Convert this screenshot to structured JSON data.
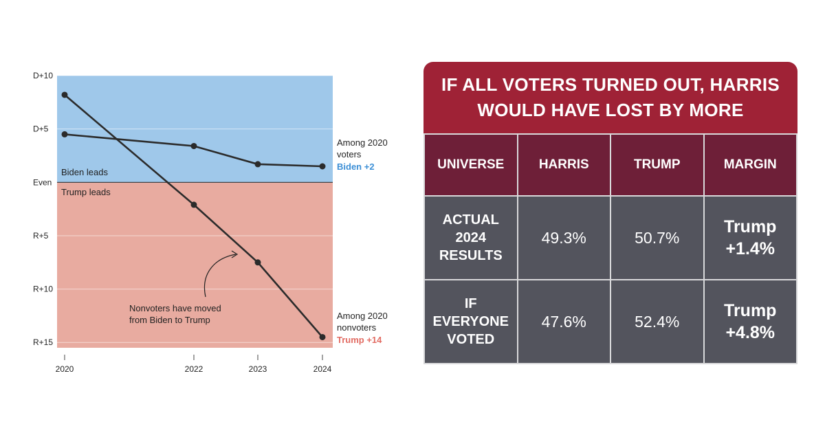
{
  "chart_data": {
    "type": "line",
    "x": [
      2020,
      2022,
      2023,
      2024
    ],
    "x_ticks": [
      "2020",
      "2022",
      "2023",
      "2024"
    ],
    "y_ticks": [
      {
        "label": "D+10",
        "value": 10
      },
      {
        "label": "D+5",
        "value": 5
      },
      {
        "label": "Even",
        "value": 0
      },
      {
        "label": "R+5",
        "value": -5
      },
      {
        "label": "R+10",
        "value": -10
      },
      {
        "label": "R+15",
        "value": -15
      }
    ],
    "ylim": [
      -15.5,
      10
    ],
    "grid": true,
    "series": [
      {
        "values": [
          4.5,
          3.4,
          1.7,
          1.5
        ],
        "end_label": [
          "Among 2020",
          "voters"
        ],
        "end_value_label": "Biden +2"
      },
      {
        "values": [
          8.2,
          -2.1,
          -7.5,
          -14.5
        ],
        "end_label": [
          "Among 2020",
          "nonvoters"
        ],
        "end_value_label": "Trump +14"
      }
    ],
    "region_labels": {
      "top": "Biden leads",
      "bottom": "Trump leads"
    },
    "annotation": [
      "Nonvoters have moved",
      "from Biden to Trump"
    ],
    "colors": {
      "biden": "#9fc8ea",
      "trump": "#e8aba0",
      "line": "#2b2b2b",
      "biden_text": "#3c8fd6",
      "trump_text": "#e26c63"
    }
  },
  "table": {
    "title": "IF ALL VOTERS TURNED OUT, HARRIS WOULD HAVE LOST BY MORE",
    "headers": [
      "UNIVERSE",
      "HARRIS",
      "TRUMP",
      "MARGIN"
    ],
    "rows": [
      {
        "universe": [
          "ACTUAL",
          "2024",
          "RESULTS"
        ],
        "harris": "49.3%",
        "trump": "50.7%",
        "margin": [
          "Trump",
          "+1.4%"
        ]
      },
      {
        "universe": [
          "IF",
          "EVERYONE",
          "VOTED"
        ],
        "harris": "47.6%",
        "trump": "52.4%",
        "margin": [
          "Trump",
          "+4.8%"
        ]
      }
    ],
    "colors": {
      "title_bg": "#9f2236",
      "header_bg": "#6e1f38",
      "cell_bg": "#53545d"
    }
  }
}
